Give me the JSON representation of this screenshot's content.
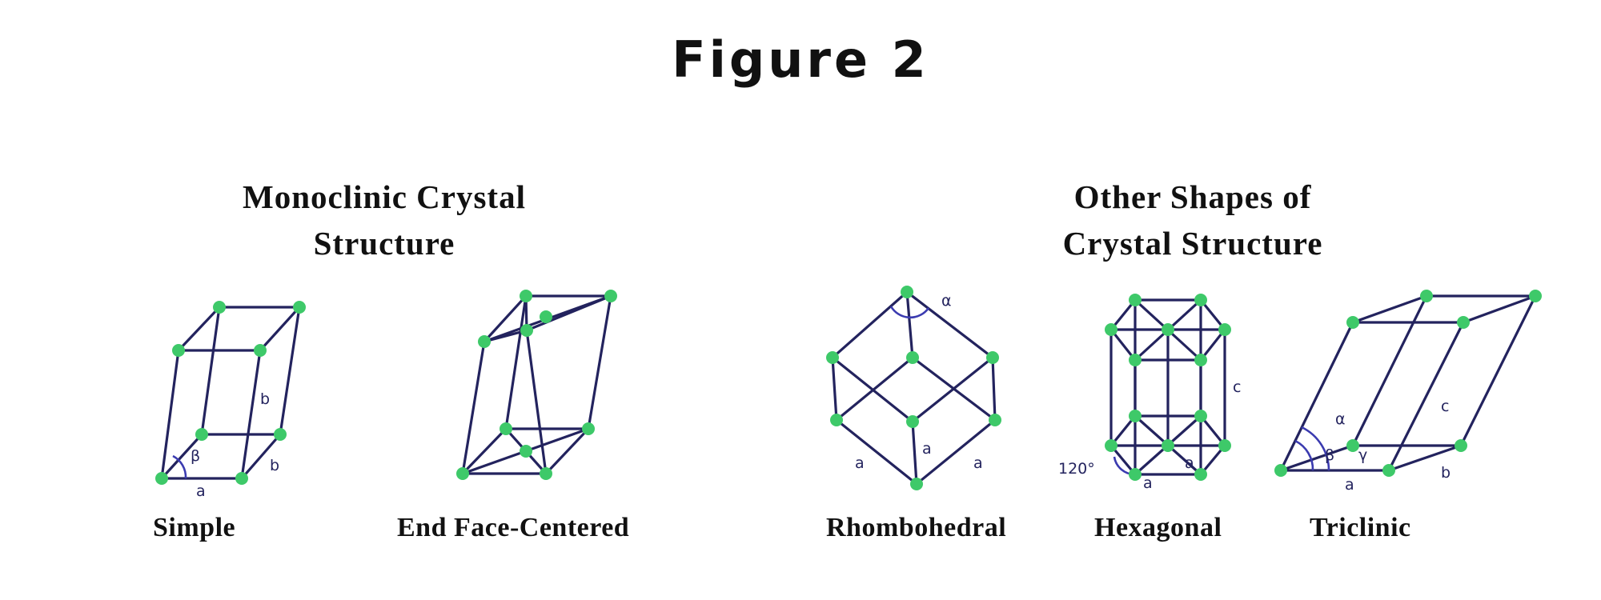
{
  "figure_title": "Figure 2",
  "sections": {
    "left_title_line1": "Monoclinic Crystal",
    "left_title_line2": "Structure",
    "right_title_line1": "Other Shapes of",
    "right_title_line2": "Crystal Structure"
  },
  "captions": {
    "simple": "Simple",
    "end_face_centered": "End Face-Centered",
    "rhombohedral": "Rhombohedral",
    "hexagonal": "Hexagonal",
    "triclinic": "Triclinic"
  },
  "labels": {
    "simple_a": "a",
    "simple_b": "b",
    "simple_c": "b",
    "simple_beta": "β",
    "rhombo_alpha": "α",
    "rhombo_a1": "a",
    "rhombo_a2": "a",
    "rhombo_a3": "a",
    "hex_angle": "120°",
    "hex_a1": "a",
    "hex_a2": "a",
    "hex_c": "c",
    "tri_alpha": "α",
    "tri_beta": "β",
    "tri_gamma": "γ",
    "tri_a": "a",
    "tri_b": "b",
    "tri_c": "c"
  },
  "colors": {
    "edge": "#23235e",
    "node": "#3ec969"
  }
}
